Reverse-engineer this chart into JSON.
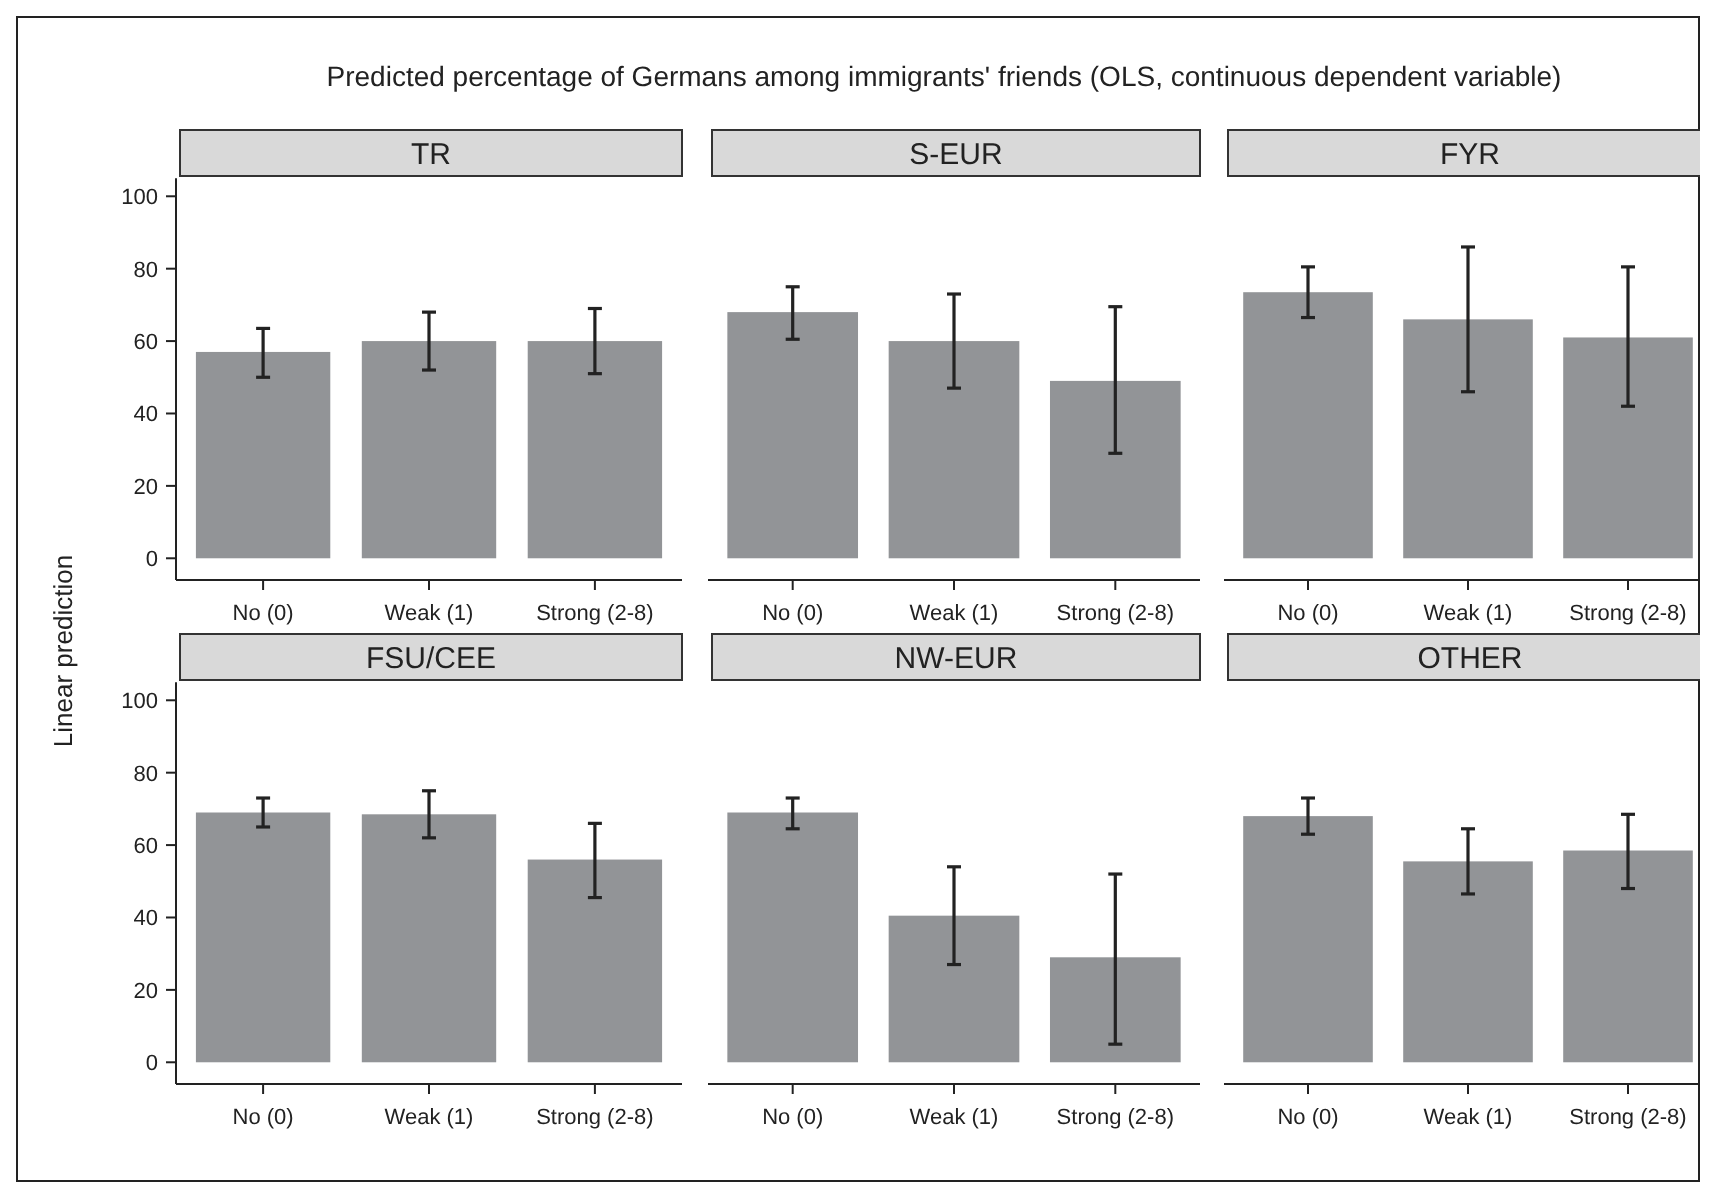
{
  "chart_data": [
    {
      "type": "bar",
      "title": "TR",
      "annotations": [
        "Predicted percentage of Germans among immigrants' friends (OLS, continuous dependent variable)"
      ],
      "ylabel": "Linear prediction",
      "categories": [
        "No (0)",
        "Weak (1)",
        "Strong (2-8)"
      ],
      "values": [
        57,
        60,
        60
      ],
      "errors": [
        [
          50,
          63.5
        ],
        [
          52,
          68
        ],
        [
          51,
          69
        ]
      ],
      "color": "#929497",
      "ylim": [
        -6,
        105
      ],
      "yticks": [
        0,
        20,
        40,
        60,
        80,
        100
      ],
      "grid": false
    },
    {
      "type": "bar",
      "title": "S-EUR",
      "categories": [
        "No (0)",
        "Weak (1)",
        "Strong (2-8)"
      ],
      "values": [
        68,
        60,
        49
      ],
      "errors": [
        [
          60.5,
          75
        ],
        [
          47,
          73
        ],
        [
          29,
          69.5
        ]
      ],
      "color": "#929497",
      "ylim": [
        -6,
        100
      ],
      "yticks": [
        0,
        20,
        40,
        60,
        80,
        100
      ],
      "tick_labels": "x",
      "grid": false
    },
    {
      "type": "bar",
      "title": "FYR",
      "categories": [
        "No (0)",
        "Weak (1)",
        "Strong (2-8)"
      ],
      "values": [
        73.5,
        66,
        61
      ],
      "errors": [
        [
          66.5,
          80.5
        ],
        [
          46,
          86
        ],
        [
          42,
          80.5
        ]
      ],
      "color": "#929497",
      "ylim": [
        -6,
        100
      ],
      "yticks": [
        0,
        20,
        40,
        60,
        80,
        100
      ],
      "tick_labels": "x",
      "grid": false
    },
    {
      "type": "bar",
      "title": "FSU/CEE",
      "categories": [
        "No (0)",
        "Weak (1)",
        "Strong (2-8)"
      ],
      "values": [
        69,
        68.5,
        56
      ],
      "errors": [
        [
          65,
          73
        ],
        [
          62,
          75
        ],
        [
          45.5,
          66
        ]
      ],
      "color": "#929497",
      "ylim": [
        -6,
        105
      ],
      "yticks": [
        0,
        20,
        40,
        60,
        80,
        100
      ],
      "grid": false
    },
    {
      "type": "bar",
      "title": "NW-EUR",
      "categories": [
        "No (0)",
        "Weak (1)",
        "Strong (2-8)"
      ],
      "values": [
        69,
        40.5,
        29
      ],
      "errors": [
        [
          64.5,
          73
        ],
        [
          27,
          54
        ],
        [
          5,
          52
        ]
      ],
      "color": "#929497",
      "ylim": [
        -6,
        100
      ],
      "yticks": [
        0,
        20,
        40,
        60,
        80,
        100
      ],
      "tick_labels": "x",
      "grid": false
    },
    {
      "type": "bar",
      "title": "OTHER",
      "categories": [
        "No (0)",
        "Weak (1)",
        "Strong (2-8)"
      ],
      "values": [
        68,
        55.5,
        58.5
      ],
      "errors": [
        [
          63,
          73
        ],
        [
          46.5,
          64.5
        ],
        [
          48,
          68.5
        ]
      ],
      "color": "#929497",
      "ylim": [
        -6,
        100
      ],
      "yticks": [
        0,
        20,
        40,
        60,
        80,
        100
      ],
      "tick_labels": "x",
      "grid": false
    }
  ]
}
